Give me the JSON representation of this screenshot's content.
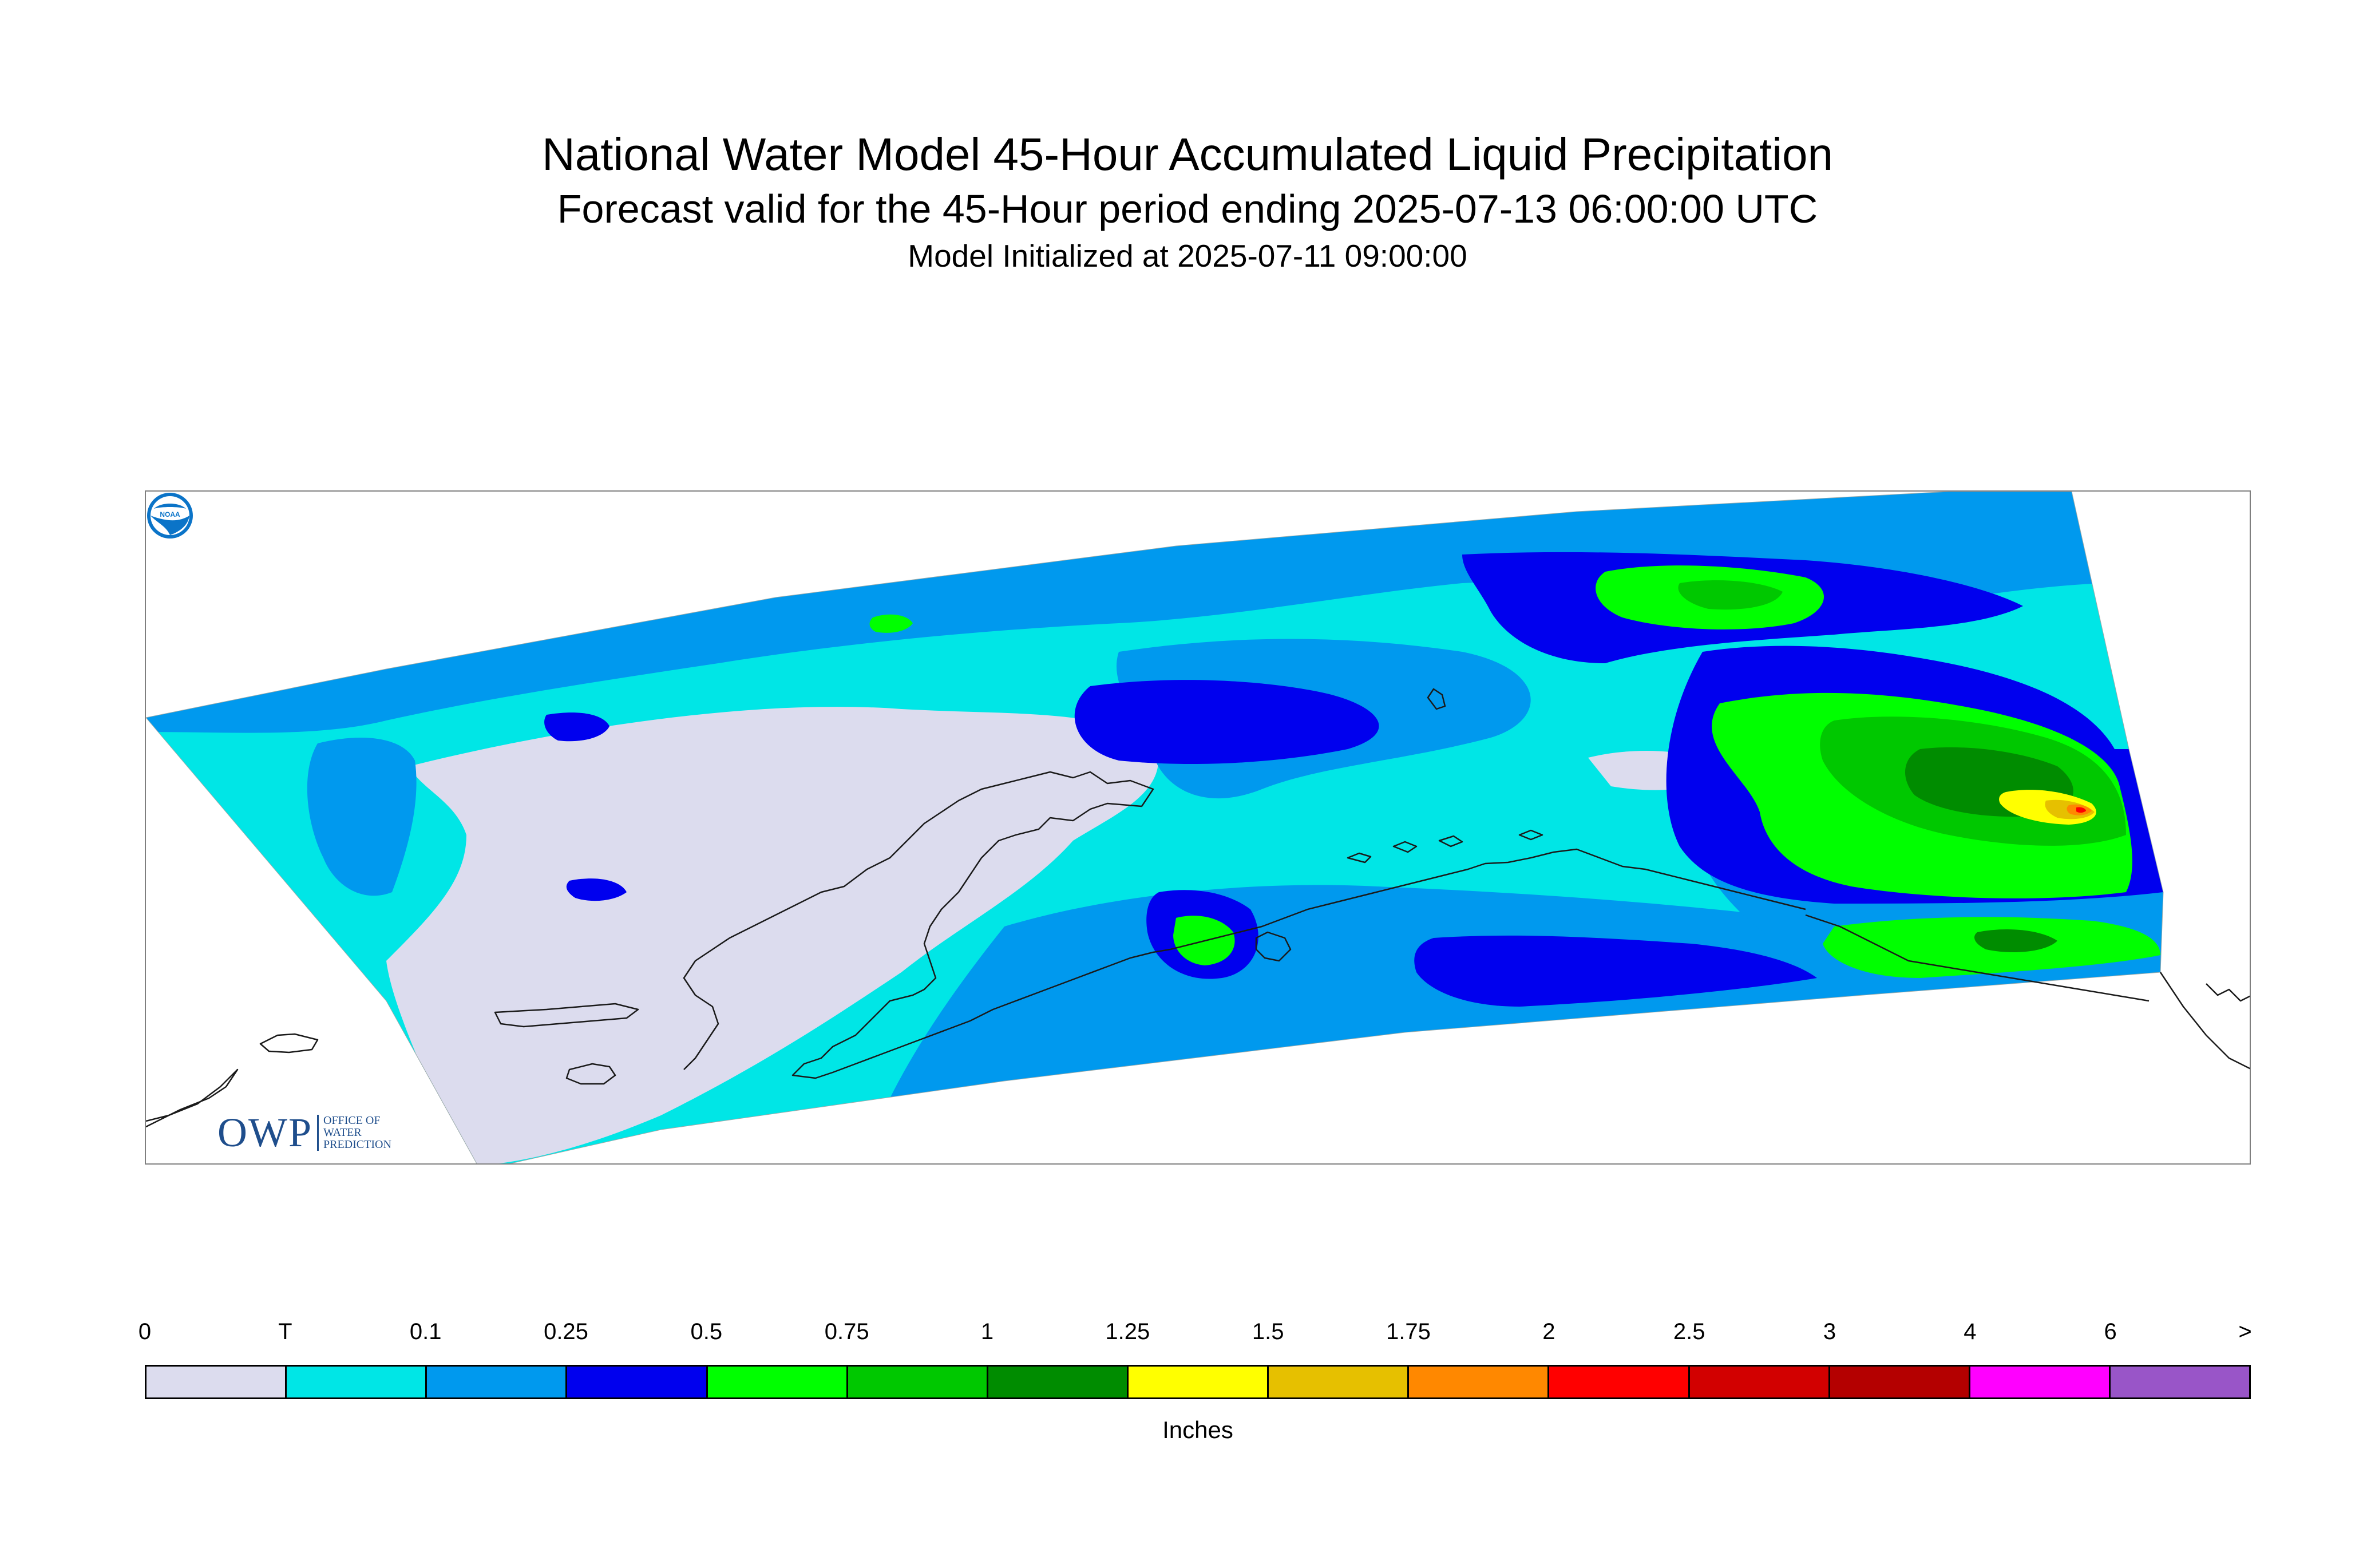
{
  "title": {
    "line1": "National Water Model 45-Hour Accumulated Liquid Precipitation",
    "line2": "Forecast valid for the 45-Hour period ending 2025-07-13 06:00:00 UTC",
    "line3": "Model Initialized at 2025-07-11 09:00:00"
  },
  "logos": {
    "owp_main": "OWP",
    "owp_sub": [
      "OFFICE OF",
      "WATER",
      "PREDICTION"
    ],
    "noaa": "NOAA"
  },
  "legend": {
    "unit": "Inches",
    "labels": [
      "0",
      "T",
      "0.1",
      "0.25",
      "0.5",
      "0.75",
      "1",
      "1.25",
      "1.5",
      "1.75",
      "2",
      "2.5",
      "3",
      "4",
      "6",
      ">"
    ],
    "colors": [
      "#dcdcee",
      "#00e6e6",
      "#0099ee",
      "#0000ee",
      "#00ff00",
      "#00c800",
      "#008c00",
      "#ffff00",
      "#e6c000",
      "#ff8800",
      "#ff0000",
      "#d20000",
      "#b40000",
      "#ff00ff",
      "#9955c8"
    ]
  },
  "map": {
    "background_color": "#ffffff",
    "coastline_color": "#000000",
    "icons": [
      "map-frame",
      "precipitation-field",
      "coastline",
      "owp-logo",
      "noaa-logo-icon"
    ]
  }
}
